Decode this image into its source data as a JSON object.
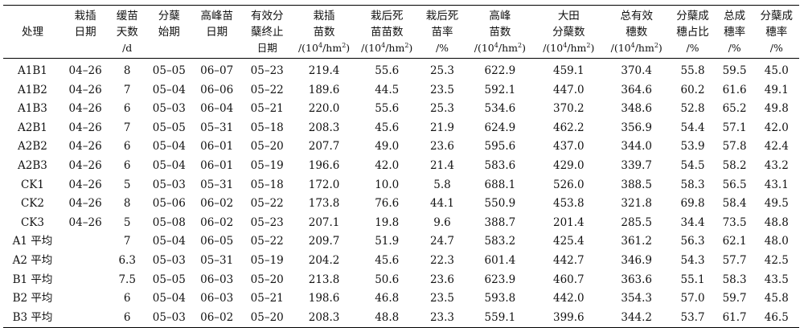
{
  "table": {
    "headers": [
      [
        "",
        "处理",
        ""
      ],
      [
        "栽插",
        "日期",
        ""
      ],
      [
        "缓苗",
        "天数",
        "/d"
      ],
      [
        "分蘖",
        "始期",
        ""
      ],
      [
        "高峰苗",
        "日期",
        ""
      ],
      [
        "有效分",
        "蘖终止",
        "日期"
      ],
      [
        "栽插",
        "苗数",
        "/(10⁴/hm²)"
      ],
      [
        "栽后死",
        "苗苗数",
        "/(10⁴/hm²)"
      ],
      [
        "栽后死",
        "苗率",
        "/%"
      ],
      [
        "高峰",
        "苗数",
        "/(10⁴/hm²)"
      ],
      [
        "大田",
        "分蘖数",
        "/(10⁴/hm²)"
      ],
      [
        "总有效",
        "穗数",
        "/(10⁴/hm²)"
      ],
      [
        "分蘖成",
        "穗占比",
        "/%"
      ],
      [
        "总成",
        "穗率",
        "/%"
      ],
      [
        "分蘖成",
        "穗率",
        "/%"
      ]
    ],
    "rows": [
      [
        "A1B1",
        "04–26",
        "8",
        "05–05",
        "06–07",
        "05–23",
        "219.4",
        "55.6",
        "25.3",
        "622.9",
        "459.1",
        "370.4",
        "55.8",
        "59.5",
        "45.0"
      ],
      [
        "A1B2",
        "04–26",
        "7",
        "05–04",
        "06–06",
        "05–22",
        "189.6",
        "44.5",
        "23.5",
        "592.1",
        "447.0",
        "364.6",
        "60.2",
        "61.6",
        "49.1"
      ],
      [
        "A1B3",
        "04–26",
        "6",
        "05–03",
        "06–04",
        "05–21",
        "220.0",
        "55.6",
        "25.3",
        "534.6",
        "370.2",
        "348.6",
        "52.8",
        "65.2",
        "49.8"
      ],
      [
        "A2B1",
        "04–26",
        "7",
        "05–05",
        "05–31",
        "05–18",
        "208.3",
        "45.6",
        "21.9",
        "624.9",
        "462.2",
        "356.9",
        "54.4",
        "57.1",
        "42.0"
      ],
      [
        "A2B2",
        "04–26",
        "6",
        "05–04",
        "06–01",
        "05–20",
        "207.7",
        "49.0",
        "23.6",
        "595.6",
        "437.0",
        "344.0",
        "53.9",
        "57.8",
        "42.4"
      ],
      [
        "A2B3",
        "04–26",
        "6",
        "05–04",
        "06–01",
        "05–19",
        "196.6",
        "42.0",
        "21.4",
        "583.6",
        "429.0",
        "339.7",
        "54.5",
        "58.2",
        "43.2"
      ],
      [
        "CK1",
        "04–26",
        "5",
        "05–03",
        "05–31",
        "05–18",
        "172.0",
        "10.0",
        "5.8",
        "688.1",
        "526.0",
        "388.5",
        "58.3",
        "56.5",
        "43.1"
      ],
      [
        "CK2",
        "04–26",
        "8",
        "05–06",
        "06–02",
        "05–22",
        "173.8",
        "76.6",
        "44.1",
        "550.9",
        "453.8",
        "321.8",
        "69.8",
        "58.4",
        "49.5"
      ],
      [
        "CK3",
        "04–26",
        "5",
        "05–08",
        "06–02",
        "05–23",
        "207.1",
        "19.8",
        "9.6",
        "388.7",
        "201.4",
        "285.5",
        "34.4",
        "73.5",
        "48.8"
      ],
      [
        "A1 平均",
        "",
        "7",
        "05–04",
        "06–05",
        "05–22",
        "209.7",
        "51.9",
        "24.7",
        "583.2",
        "425.4",
        "361.2",
        "56.3",
        "62.1",
        "48.0"
      ],
      [
        "A2 平均",
        "",
        "6.3",
        "05–03",
        "05–31",
        "05–19",
        "204.2",
        "45.6",
        "22.3",
        "601.4",
        "442.7",
        "346.9",
        "54.3",
        "57.7",
        "42.5"
      ],
      [
        "B1 平均",
        "",
        "7.5",
        "05–05",
        "06–03",
        "05–20",
        "213.8",
        "50.6",
        "23.6",
        "623.9",
        "460.7",
        "363.6",
        "55.1",
        "58.3",
        "43.5"
      ],
      [
        "B2 平均",
        "",
        "6",
        "05–04",
        "06–03",
        "05–21",
        "198.6",
        "46.8",
        "23.5",
        "593.8",
        "442.0",
        "354.3",
        "57.0",
        "59.7",
        "45.8"
      ],
      [
        "B3 平均",
        "",
        "6",
        "05–03",
        "06–02",
        "05–20",
        "208.3",
        "48.8",
        "23.3",
        "559.1",
        "399.6",
        "344.2",
        "53.7",
        "61.7",
        "46.5"
      ]
    ]
  }
}
